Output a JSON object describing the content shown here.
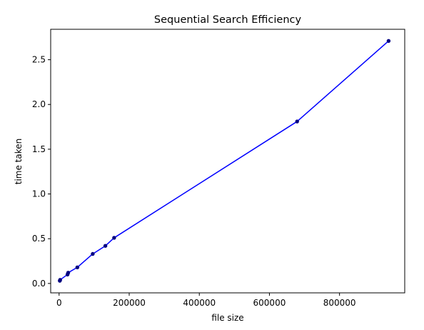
{
  "chart_data": {
    "type": "line",
    "title": "Sequential Search  Efficiency",
    "xlabel": "file size",
    "ylabel": "time taken",
    "xlim": [
      -24000,
      986000
    ],
    "ylim": [
      -0.105,
      2.84
    ],
    "x_ticks": [
      0,
      200000,
      400000,
      600000,
      800000
    ],
    "x_tick_labels": [
      "0",
      "200000",
      "400000",
      "600000",
      "800000"
    ],
    "y_ticks": [
      0.0,
      0.5,
      1.0,
      1.5,
      2.0,
      2.5
    ],
    "y_tick_labels": [
      "0.0",
      "0.5",
      "1.0",
      "1.5",
      "2.0",
      "2.5"
    ],
    "grid": false,
    "series": [
      {
        "color": "#0000ff",
        "marker_color": "#000080",
        "points": [
          {
            "x": 2000,
            "y": 0.03
          },
          {
            "x": 3000,
            "y": 0.04
          },
          {
            "x": 24000,
            "y": 0.1
          },
          {
            "x": 26000,
            "y": 0.12
          },
          {
            "x": 52000,
            "y": 0.18
          },
          {
            "x": 96000,
            "y": 0.33
          },
          {
            "x": 132000,
            "y": 0.42
          },
          {
            "x": 157000,
            "y": 0.51
          },
          {
            "x": 679000,
            "y": 1.81
          },
          {
            "x": 940000,
            "y": 2.71
          }
        ]
      }
    ]
  }
}
